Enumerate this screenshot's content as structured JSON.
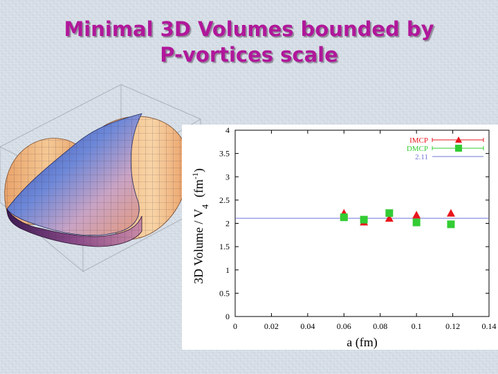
{
  "slide": {
    "title_line1": "Minimal 3D Volumes bounded by",
    "title_line2": "P-vortices scale"
  },
  "surface_image": {
    "icon": "3d-minimal-surface-illustration"
  },
  "chart_data": {
    "type": "scatter",
    "xlabel": "a (fm)",
    "ylabel": "3D Volume / V",
    "ylabel_sub": "4",
    "ylabel_unit": "(fm",
    "ylabel_unit_sup": "-1",
    "ylabel_unit_close": ")",
    "xlim": [
      0,
      0.14
    ],
    "ylim": [
      0,
      4
    ],
    "xticks": [
      0,
      0.02,
      0.04,
      0.06,
      0.08,
      0.1,
      0.12,
      0.14
    ],
    "xtick_labels": [
      "0",
      "0.02",
      "0.04",
      "0.06",
      "0.08",
      "0.1",
      "0.12",
      "0.14"
    ],
    "yticks": [
      0,
      0.5,
      1,
      1.5,
      2,
      2.5,
      3,
      3.5,
      4
    ],
    "ytick_labels": [
      "0",
      "0.5",
      "1",
      "1.5",
      "2",
      "2.5",
      "3",
      "3.5",
      "4"
    ],
    "grid": false,
    "legend_position": "top-right",
    "series": [
      {
        "name": "IMCP",
        "marker": "triangle",
        "color": "#e8161c",
        "x": [
          0.06,
          0.071,
          0.085,
          0.1,
          0.119
        ],
        "y": [
          2.22,
          2.03,
          2.11,
          2.18,
          2.22
        ]
      },
      {
        "name": "DMCP",
        "marker": "square",
        "color": "#33cc33",
        "x": [
          0.06,
          0.071,
          0.085,
          0.1,
          0.119
        ],
        "y": [
          2.13,
          2.08,
          2.22,
          2.02,
          1.98
        ]
      },
      {
        "name": "2.11",
        "marker": "line",
        "color": "#6f74d6",
        "value": 2.11
      }
    ]
  }
}
